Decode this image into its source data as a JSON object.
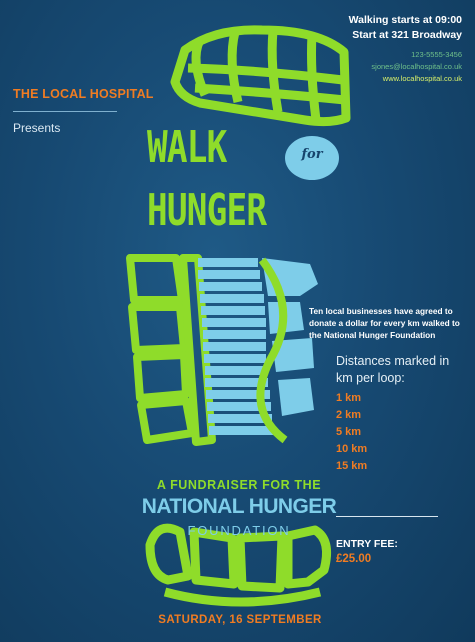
{
  "organizer": {
    "name": "THE LOCAL HOSPITAL",
    "presents": "Presents"
  },
  "event_info": {
    "walk_start": "Walking starts at 09:00",
    "location": "Start at 321 Broadway",
    "phone": "123-5555-3456",
    "email": "sjones@localhospital.co.uk",
    "website": "www.localhospital.co.uk"
  },
  "title": {
    "line1": "WALK",
    "connector": "for",
    "line2": "HUNGER"
  },
  "fundraiser": {
    "line": "A FUNDRAISER FOR THE",
    "beneficiary": "NATIONAL HUNGER",
    "beneficiary_suffix": "FOUNDATION"
  },
  "date": "SATURDAY, 16 SEPTEMBER",
  "donation_note": "Ten local businesses have agreed to donate a dollar for every km walked to the National Hunger Foundation",
  "distances": {
    "title": "Distances marked in km per loop:",
    "items": [
      "1 km",
      "2 km",
      "5 km",
      "10 km",
      "15 km"
    ]
  },
  "entry_fee": {
    "label": "ENTRY FEE:",
    "value": "£25.00"
  },
  "colors": {
    "background": "#174a73",
    "green": "#8fdc2a",
    "light_blue": "#7ecde9",
    "orange": "#f07c22"
  },
  "icons": [
    "shoe-print-icon"
  ]
}
